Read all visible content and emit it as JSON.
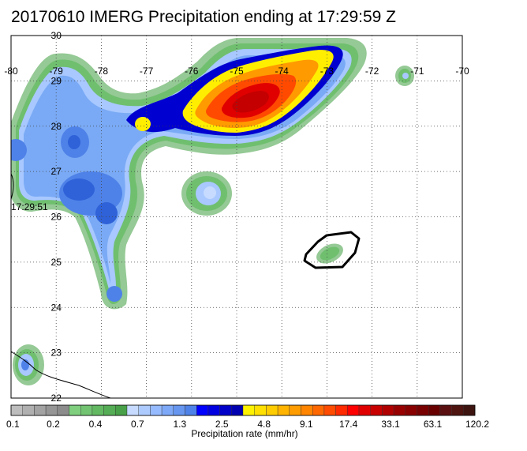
{
  "title": "20170610 IMERG Precipitation ending at 17:29:59 Z",
  "map": {
    "lon_range": [
      -80,
      -70
    ],
    "lat_range": [
      22,
      30
    ],
    "lon_labels": [
      "-80",
      "-79",
      "-78",
      "-77",
      "-76",
      "-75",
      "-74",
      "-73",
      "-72",
      "-71",
      "-70"
    ],
    "lat_labels": [
      "30",
      "29",
      "28",
      "27",
      "26",
      "25",
      "24",
      "23",
      "22"
    ],
    "time_annotation": "17:29:51",
    "grid": "dotted"
  },
  "colorbar": {
    "title": "Precipitation rate (mm/hr)",
    "tick_labels": [
      "0.1",
      "0.2",
      "0.4",
      "0.7",
      "1.3",
      "2.5",
      "4.8",
      "9.1",
      "17.4",
      "33.1",
      "63.1",
      "120.2"
    ],
    "colors": [
      "#bdbdbd",
      "#b0b0b0",
      "#a3a3a3",
      "#969696",
      "#8c8c8c",
      "#7fcf7f",
      "#72c472",
      "#62b962",
      "#55ad55",
      "#48a148",
      "#c6dbff",
      "#aecbff",
      "#96bbff",
      "#7ea9f8",
      "#6696f0",
      "#4f82e8",
      "#0000ff",
      "#0000e0",
      "#0000c8",
      "#0000b0",
      "#fff200",
      "#ffe000",
      "#ffcc00",
      "#ffb400",
      "#ff9c00",
      "#ff8400",
      "#ff6800",
      "#ff4c00",
      "#ff2a00",
      "#ff0000",
      "#e00000",
      "#c80000",
      "#b00000",
      "#980000",
      "#880000",
      "#780000",
      "#680000",
      "#5a1010",
      "#4e1410",
      "#3e1410"
    ]
  }
}
